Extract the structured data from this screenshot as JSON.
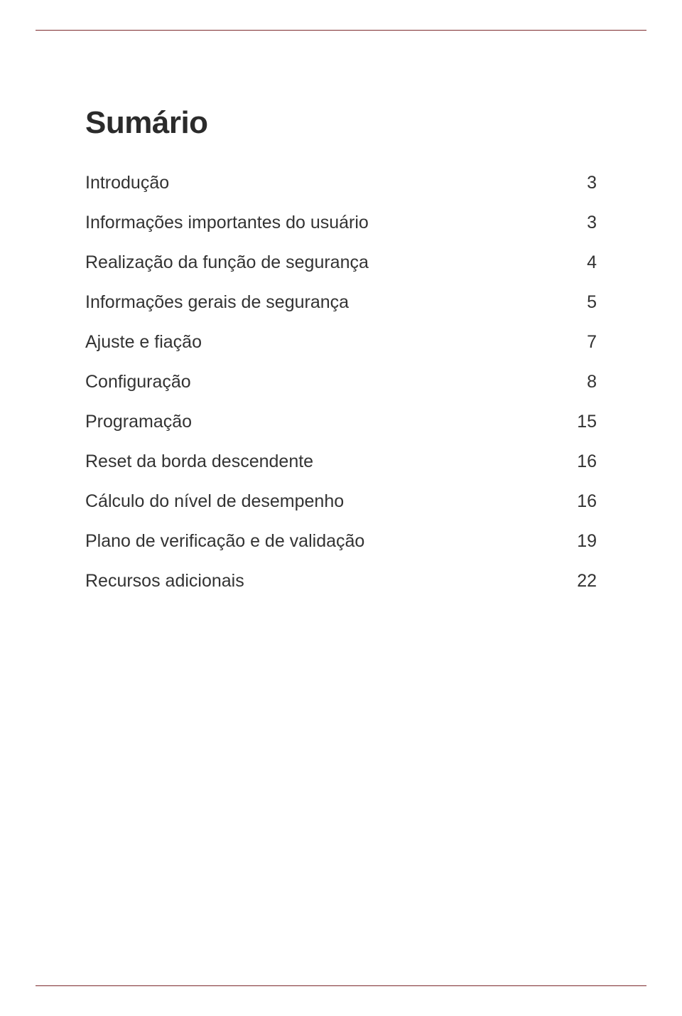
{
  "page": {
    "background_color": "#ffffff",
    "rule_color": "#7e2a2e",
    "text_color": "#333333",
    "heading_color": "#2b2b2b",
    "heading_fontsize": 44,
    "entry_fontsize": 25
  },
  "heading": "Sumário",
  "toc": {
    "entries": [
      {
        "title": "Introdução",
        "page": "3"
      },
      {
        "title": "Informações importantes do usuário",
        "page": "3"
      },
      {
        "title": "Realização da função de segurança",
        "page": "4"
      },
      {
        "title": "Informações gerais de segurança",
        "page": "5"
      },
      {
        "title": "Ajuste e fiação",
        "page": "7"
      },
      {
        "title": "Configuração",
        "page": "8"
      },
      {
        "title": "Programação",
        "page": "15"
      },
      {
        "title": "Reset da borda descendente",
        "page": "16"
      },
      {
        "title": "Cálculo do nível de desempenho",
        "page": "16"
      },
      {
        "title": "Plano de verificação e de validação",
        "page": "19"
      },
      {
        "title": "Recursos adicionais",
        "page": "22"
      }
    ]
  }
}
